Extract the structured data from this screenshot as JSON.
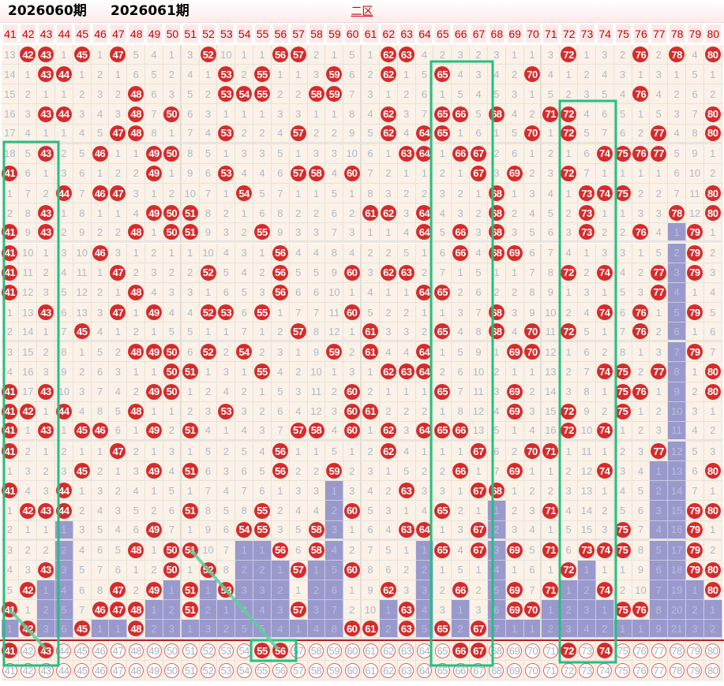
{
  "header": {
    "title": "二区"
  },
  "columns": [
    41,
    42,
    43,
    44,
    45,
    46,
    47,
    48,
    49,
    50,
    51,
    52,
    53,
    54,
    55,
    56,
    57,
    58,
    59,
    60,
    61,
    62,
    63,
    64,
    65,
    66,
    67,
    68,
    69,
    70,
    71,
    72,
    73,
    74,
    75,
    76,
    77,
    78,
    79,
    80
  ],
  "rows": [
    [
      13,
      42,
      43,
      1,
      45,
      1,
      47,
      5,
      4,
      1,
      3,
      52,
      10,
      1,
      1,
      56,
      57,
      2,
      1,
      5,
      1,
      62,
      63,
      4,
      2,
      3,
      2,
      3,
      1,
      1,
      3,
      72,
      1,
      3,
      2,
      76,
      2,
      78,
      4,
      80
    ],
    [
      14,
      1,
      43,
      44,
      1,
      2,
      1,
      6,
      5,
      2,
      4,
      1,
      53,
      2,
      55,
      1,
      1,
      3,
      59,
      6,
      2,
      62,
      1,
      5,
      65,
      4,
      3,
      4,
      2,
      70,
      4,
      1,
      2,
      4,
      3,
      1,
      3,
      1,
      5,
      1
    ],
    [
      15,
      2,
      1,
      1,
      2,
      3,
      2,
      48,
      6,
      3,
      5,
      2,
      53,
      54,
      55,
      2,
      2,
      58,
      59,
      7,
      3,
      1,
      2,
      6,
      1,
      5,
      4,
      5,
      3,
      1,
      5,
      2,
      3,
      5,
      4,
      76,
      4,
      2,
      6,
      2
    ],
    [
      16,
      3,
      43,
      44,
      3,
      4,
      3,
      48,
      7,
      50,
      6,
      3,
      1,
      1,
      1,
      3,
      3,
      1,
      1,
      8,
      4,
      62,
      3,
      7,
      65,
      66,
      5,
      68,
      4,
      2,
      71,
      72,
      4,
      6,
      5,
      1,
      5,
      3,
      7,
      80
    ],
    [
      17,
      4,
      1,
      1,
      4,
      5,
      47,
      48,
      8,
      1,
      7,
      4,
      53,
      2,
      2,
      4,
      57,
      2,
      2,
      9,
      5,
      62,
      4,
      64,
      65,
      1,
      6,
      1,
      5,
      70,
      1,
      72,
      5,
      7,
      6,
      2,
      77,
      4,
      8,
      80
    ],
    [
      18,
      5,
      43,
      2,
      5,
      46,
      1,
      1,
      49,
      50,
      8,
      5,
      1,
      3,
      3,
      5,
      1,
      3,
      3,
      10,
      6,
      1,
      63,
      64,
      1,
      66,
      67,
      2,
      6,
      1,
      2,
      1,
      6,
      74,
      75,
      76,
      77,
      5,
      9,
      1
    ],
    [
      41,
      6,
      1,
      3,
      6,
      1,
      2,
      2,
      49,
      1,
      9,
      6,
      53,
      4,
      4,
      6,
      57,
      58,
      4,
      60,
      7,
      2,
      1,
      1,
      2,
      1,
      67,
      3,
      69,
      2,
      3,
      72,
      7,
      1,
      1,
      1,
      1,
      6,
      10,
      2
    ],
    [
      1,
      7,
      2,
      44,
      7,
      46,
      47,
      3,
      1,
      2,
      10,
      7,
      1,
      54,
      5,
      7,
      1,
      1,
      5,
      1,
      8,
      3,
      2,
      2,
      3,
      2,
      1,
      68,
      1,
      3,
      4,
      1,
      73,
      74,
      75,
      2,
      2,
      7,
      11,
      80
    ],
    [
      2,
      8,
      43,
      1,
      8,
      1,
      1,
      4,
      49,
      50,
      51,
      8,
      2,
      1,
      6,
      8,
      2,
      2,
      6,
      2,
      61,
      62,
      3,
      64,
      4,
      3,
      2,
      68,
      2,
      4,
      5,
      2,
      73,
      1,
      1,
      3,
      3,
      78,
      12,
      80
    ],
    [
      41,
      9,
      43,
      2,
      9,
      2,
      2,
      48,
      1,
      50,
      51,
      9,
      3,
      2,
      55,
      9,
      3,
      3,
      7,
      3,
      1,
      1,
      4,
      64,
      5,
      66,
      3,
      68,
      3,
      5,
      6,
      3,
      73,
      2,
      2,
      76,
      4,
      1,
      79,
      1
    ],
    [
      41,
      10,
      1,
      3,
      10,
      46,
      3,
      1,
      2,
      1,
      1,
      10,
      4,
      3,
      1,
      56,
      4,
      4,
      8,
      4,
      2,
      2,
      5,
      1,
      6,
      66,
      4,
      68,
      69,
      6,
      7,
      4,
      1,
      3,
      3,
      1,
      5,
      2,
      79,
      2
    ],
    [
      41,
      11,
      2,
      4,
      11,
      1,
      47,
      2,
      3,
      2,
      2,
      52,
      5,
      4,
      2,
      56,
      5,
      5,
      9,
      60,
      3,
      62,
      63,
      2,
      7,
      1,
      5,
      1,
      1,
      7,
      8,
      72,
      2,
      74,
      4,
      2,
      77,
      3,
      79,
      3
    ],
    [
      41,
      12,
      3,
      5,
      12,
      2,
      1,
      48,
      4,
      3,
      3,
      1,
      6,
      5,
      3,
      56,
      6,
      6,
      10,
      1,
      4,
      1,
      1,
      64,
      65,
      2,
      6,
      2,
      2,
      8,
      9,
      1,
      3,
      1,
      5,
      3,
      77,
      4,
      1,
      4
    ],
    [
      1,
      13,
      43,
      6,
      13,
      3,
      47,
      1,
      49,
      4,
      4,
      52,
      53,
      6,
      55,
      1,
      7,
      7,
      11,
      60,
      5,
      2,
      2,
      1,
      1,
      3,
      7,
      68,
      3,
      9,
      10,
      2,
      4,
      74,
      6,
      76,
      1,
      5,
      79,
      5
    ],
    [
      2,
      14,
      1,
      7,
      45,
      4,
      1,
      2,
      1,
      5,
      5,
      1,
      1,
      7,
      1,
      2,
      57,
      8,
      12,
      1,
      61,
      3,
      3,
      2,
      65,
      4,
      8,
      68,
      4,
      70,
      11,
      72,
      5,
      1,
      7,
      76,
      2,
      6,
      1,
      6
    ],
    [
      3,
      15,
      2,
      8,
      1,
      5,
      2,
      48,
      49,
      50,
      6,
      52,
      2,
      54,
      2,
      3,
      1,
      9,
      59,
      2,
      61,
      4,
      4,
      64,
      1,
      5,
      9,
      1,
      69,
      70,
      12,
      1,
      6,
      2,
      8,
      1,
      3,
      7,
      79,
      7
    ],
    [
      4,
      16,
      3,
      9,
      2,
      6,
      3,
      1,
      1,
      50,
      51,
      1,
      3,
      1,
      55,
      4,
      2,
      10,
      1,
      3,
      1,
      62,
      63,
      64,
      2,
      6,
      10,
      2,
      1,
      1,
      13,
      2,
      7,
      74,
      75,
      2,
      77,
      8,
      1,
      80
    ],
    [
      41,
      17,
      43,
      10,
      3,
      7,
      4,
      2,
      49,
      50,
      1,
      2,
      4,
      2,
      1,
      5,
      3,
      11,
      2,
      60,
      2,
      1,
      1,
      1,
      65,
      7,
      11,
      3,
      69,
      2,
      14,
      3,
      8,
      1,
      75,
      76,
      1,
      9,
      2,
      80
    ],
    [
      41,
      42,
      1,
      44,
      4,
      8,
      5,
      48,
      1,
      1,
      2,
      3,
      53,
      3,
      2,
      6,
      4,
      12,
      3,
      60,
      61,
      2,
      2,
      2,
      1,
      8,
      12,
      4,
      69,
      3,
      15,
      72,
      9,
      2,
      75,
      1,
      2,
      10,
      3,
      1
    ],
    [
      41,
      1,
      43,
      1,
      45,
      46,
      6,
      1,
      49,
      2,
      51,
      4,
      1,
      4,
      3,
      7,
      57,
      58,
      4,
      60,
      1,
      62,
      3,
      64,
      65,
      66,
      13,
      5,
      1,
      4,
      16,
      72,
      10,
      74,
      1,
      2,
      3,
      11,
      4,
      2
    ],
    [
      41,
      2,
      1,
      2,
      1,
      1,
      47,
      2,
      1,
      3,
      1,
      5,
      2,
      5,
      4,
      56,
      1,
      1,
      5,
      1,
      2,
      62,
      4,
      1,
      1,
      1,
      67,
      6,
      2,
      70,
      71,
      1,
      11,
      1,
      2,
      3,
      77,
      12,
      5,
      3
    ],
    [
      1,
      3,
      2,
      3,
      45,
      2,
      1,
      3,
      49,
      4,
      51,
      6,
      3,
      6,
      5,
      56,
      2,
      2,
      59,
      2,
      3,
      1,
      5,
      2,
      2,
      66,
      1,
      7,
      69,
      1,
      1,
      2,
      12,
      74,
      3,
      4,
      1,
      13,
      6,
      80
    ],
    [
      41,
      4,
      3,
      44,
      1,
      3,
      2,
      4,
      1,
      5,
      1,
      7,
      4,
      7,
      6,
      1,
      3,
      3,
      1,
      3,
      4,
      2,
      63,
      3,
      3,
      1,
      67,
      68,
      1,
      2,
      2,
      3,
      13,
      1,
      4,
      5,
      2,
      14,
      7,
      1
    ],
    [
      1,
      42,
      43,
      44,
      2,
      4,
      3,
      5,
      2,
      6,
      51,
      8,
      5,
      8,
      55,
      2,
      4,
      4,
      2,
      60,
      5,
      3,
      1,
      4,
      65,
      2,
      1,
      1,
      2,
      3,
      71,
      4,
      14,
      2,
      5,
      6,
      3,
      15,
      79,
      80
    ],
    [
      2,
      1,
      1,
      1,
      3,
      5,
      4,
      6,
      49,
      7,
      1,
      9,
      6,
      54,
      55,
      3,
      5,
      58,
      3,
      1,
      6,
      4,
      63,
      64,
      1,
      3,
      67,
      2,
      3,
      4,
      1,
      5,
      15,
      3,
      75,
      7,
      4,
      16,
      79,
      1
    ],
    [
      3,
      2,
      2,
      2,
      4,
      6,
      5,
      48,
      1,
      50,
      51,
      10,
      7,
      1,
      1,
      56,
      6,
      58,
      4,
      2,
      7,
      5,
      1,
      1,
      65,
      4,
      67,
      3,
      69,
      5,
      71,
      6,
      73,
      74,
      75,
      8,
      5,
      17,
      79,
      2
    ],
    [
      4,
      3,
      43,
      3,
      5,
      7,
      6,
      1,
      2,
      50,
      1,
      52,
      8,
      2,
      2,
      1,
      57,
      1,
      5,
      60,
      8,
      6,
      2,
      2,
      1,
      5,
      1,
      4,
      1,
      6,
      1,
      72,
      1,
      1,
      1,
      9,
      6,
      18,
      79,
      80
    ],
    [
      5,
      42,
      1,
      4,
      6,
      8,
      47,
      2,
      49,
      1,
      51,
      1,
      53,
      3,
      3,
      2,
      1,
      2,
      6,
      1,
      9,
      62,
      3,
      3,
      2,
      66,
      2,
      5,
      69,
      7,
      71,
      1,
      2,
      74,
      2,
      10,
      7,
      19,
      1,
      80
    ],
    [
      41,
      1,
      2,
      5,
      7,
      46,
      47,
      48,
      1,
      2,
      51,
      2,
      1,
      4,
      4,
      3,
      57,
      3,
      7,
      2,
      10,
      1,
      63,
      4,
      3,
      1,
      3,
      6,
      69,
      70,
      1,
      2,
      3,
      1,
      75,
      76,
      8,
      20,
      2,
      1
    ],
    [
      1,
      42,
      3,
      6,
      45,
      1,
      1,
      48,
      2,
      3,
      1,
      3,
      2,
      5,
      5,
      4,
      1,
      4,
      8,
      60,
      61,
      2,
      63,
      5,
      65,
      2,
      67,
      7,
      1,
      1,
      2,
      3,
      4,
      2,
      1,
      1,
      9,
      21,
      3,
      2
    ]
  ],
  "current_draw": {
    "hits": [
      41,
      43,
      55,
      56,
      66,
      67,
      72,
      74
    ]
  },
  "annotations": {
    "prev_issue": "2026060期",
    "next_issue": "2026061期"
  },
  "colors": {
    "hit": "#d62b2b",
    "miss_text": "#aabbcc",
    "omission_layer": "#9999cc",
    "annotation": "#22c080",
    "header_text": "#cc0000"
  }
}
